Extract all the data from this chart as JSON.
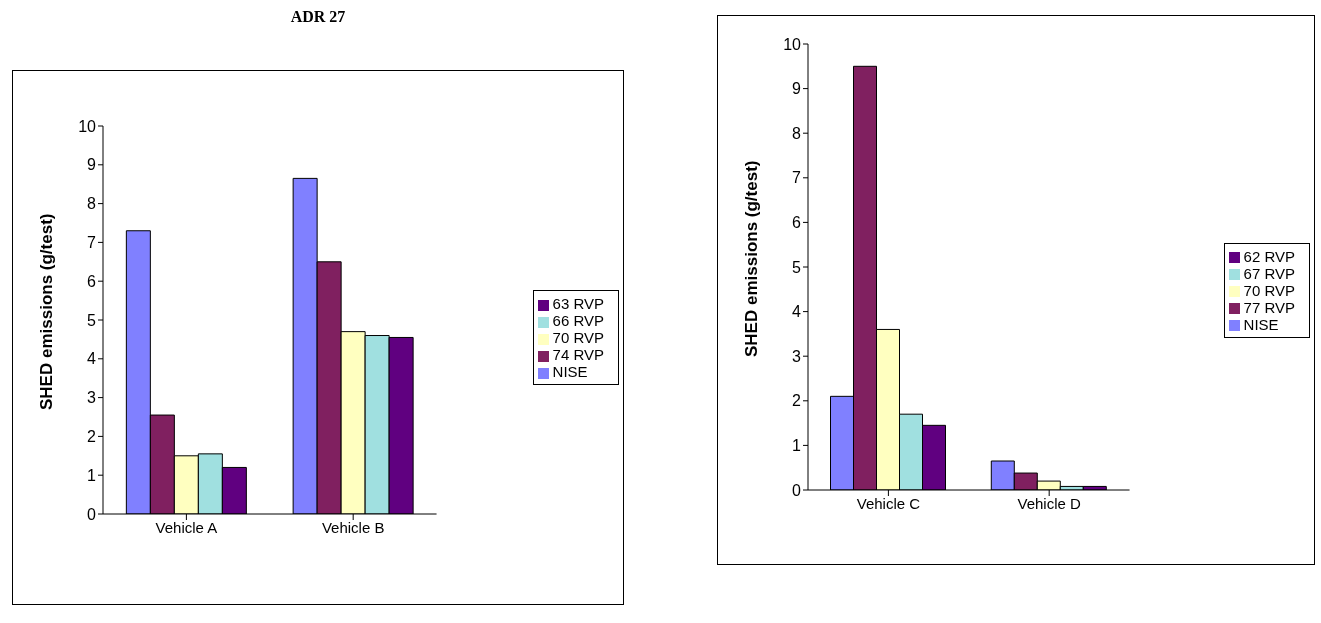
{
  "chart_data": [
    {
      "type": "bar",
      "title": "ADR 27",
      "ylabel": "SHED emissions (g/test)",
      "categories": [
        "Vehicle A",
        "Vehicle B"
      ],
      "series": [
        {
          "name": "NISE",
          "color": "#8080ff",
          "values": [
            7.3,
            8.65
          ]
        },
        {
          "name": "74 RVP",
          "color": "#802060",
          "values": [
            2.55,
            6.5
          ]
        },
        {
          "name": "70 RVP",
          "color": "#ffffc0",
          "values": [
            1.5,
            4.7
          ]
        },
        {
          "name": "66 RVP",
          "color": "#a0e0e0",
          "values": [
            1.55,
            4.6
          ]
        },
        {
          "name": "63 RVP",
          "color": "#600080",
          "values": [
            1.2,
            4.55
          ]
        }
      ],
      "ylim": [
        0,
        10
      ],
      "yticks": [
        0,
        1,
        2,
        3,
        4,
        5,
        6,
        7,
        8,
        9,
        10
      ],
      "legend": "right"
    },
    {
      "type": "bar",
      "ylabel": "SHED emissions (g/test)",
      "categories": [
        "Vehicle C",
        "Vehicle D"
      ],
      "series": [
        {
          "name": "NISE",
          "color": "#8080ff",
          "values": [
            2.1,
            0.65
          ]
        },
        {
          "name": "77 RVP",
          "color": "#802060",
          "values": [
            9.5,
            0.38
          ]
        },
        {
          "name": "70 RVP",
          "color": "#ffffc0",
          "values": [
            3.6,
            0.2
          ]
        },
        {
          "name": "67 RVP",
          "color": "#a0e0e0",
          "values": [
            1.7,
            0.08
          ]
        },
        {
          "name": "62 RVP",
          "color": "#600080",
          "values": [
            1.45,
            0.08
          ]
        }
      ],
      "ylim": [
        0,
        10
      ],
      "yticks": [
        0,
        1,
        2,
        3,
        4,
        5,
        6,
        7,
        8,
        9,
        10
      ],
      "legend": "right"
    }
  ]
}
